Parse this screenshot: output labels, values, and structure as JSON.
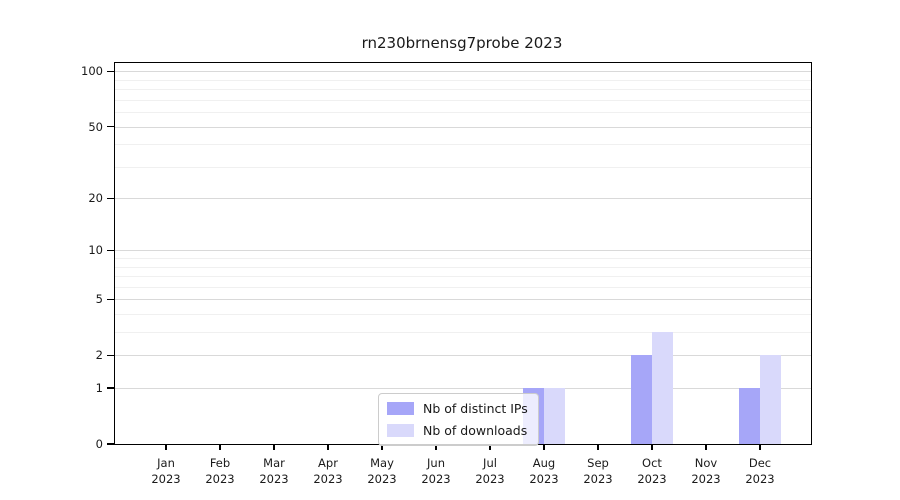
{
  "chart_data": {
    "type": "bar",
    "title": "rn230brnensg7probe 2023",
    "categories": [
      "Jan 2023",
      "Feb 2023",
      "Mar 2023",
      "Apr 2023",
      "May 2023",
      "Jun 2023",
      "Jul 2023",
      "Aug 2023",
      "Sep 2023",
      "Oct 2023",
      "Nov 2023",
      "Dec 2023"
    ],
    "series": [
      {
        "name": "Nb of distinct IPs",
        "color": "#a6a6f8",
        "values": [
          0,
          0,
          0,
          0,
          0,
          0,
          0,
          1,
          0,
          2,
          0,
          1
        ]
      },
      {
        "name": "Nb of downloads",
        "color": "#d9d9fb",
        "values": [
          0,
          0,
          0,
          0,
          0,
          0,
          0,
          1,
          0,
          3,
          0,
          2
        ]
      }
    ],
    "xlabel": "",
    "ylabel": "",
    "yscale": "log1p",
    "ylim": [
      0,
      111
    ],
    "yticks": [
      0,
      1,
      2,
      5,
      10,
      20,
      50,
      100
    ],
    "minor_gridlines": [
      3,
      4,
      6,
      7,
      8,
      9,
      30,
      40,
      60,
      70,
      80,
      90
    ],
    "grid": true,
    "legend_position": "inside-bottom-center"
  },
  "colors": {
    "axis": "#000000",
    "grid_major": "#d9d9d9",
    "grid_minor": "#f0f0f0",
    "background": "#ffffff"
  }
}
